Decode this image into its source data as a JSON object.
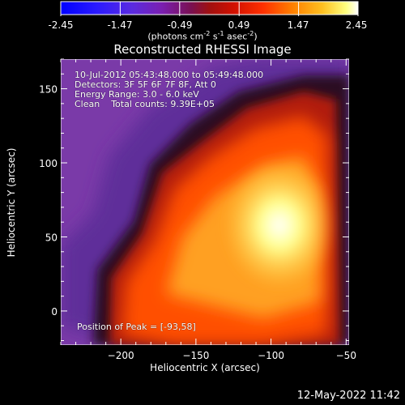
{
  "colorbar": {
    "ticks": [
      "-2.45",
      "-1.47",
      "-0.49",
      "0.49",
      "1.47",
      "2.45"
    ],
    "min": -2.45,
    "max": 2.45,
    "units_prefix": "(photons cm",
    "units_exp1": "-2",
    "units_mid": " s",
    "units_exp2": "-1",
    "units_mid2": " asec",
    "units_exp3": "-2",
    "units_suffix": ")"
  },
  "title": "Reconstructed RHESSI Image",
  "annotations": {
    "time_range": "10-Jul-2012 05:43:48.000 to 05:49:48.000",
    "detectors": "Detectors: 3F 5F 6F 7F 8F, Att 0",
    "energy": "Energy Range: 3.0 - 6.0 keV",
    "clean": "Clean    Total counts: 9.39E+05",
    "peak": "Position of Peak = [-93,58]"
  },
  "chart_data": {
    "type": "heatmap",
    "title": "Reconstructed RHESSI Image",
    "xlabel": "Heliocentric X (arcsec)",
    "ylabel": "Heliocentric Y (arcsec)",
    "xlim": [
      -240,
      -48
    ],
    "ylim": [
      -23,
      170
    ],
    "xticks": [
      -200,
      -150,
      -100,
      -50
    ],
    "yticks": [
      0,
      50,
      100,
      150
    ],
    "colorscale": "RHESSI color table (purple-red-orange-yellow-white)",
    "colorbar_range": [
      -2.45,
      2.45
    ],
    "peak_position": [
      -93,
      58
    ]
  },
  "timestamp": "12-May-2022 11:42"
}
